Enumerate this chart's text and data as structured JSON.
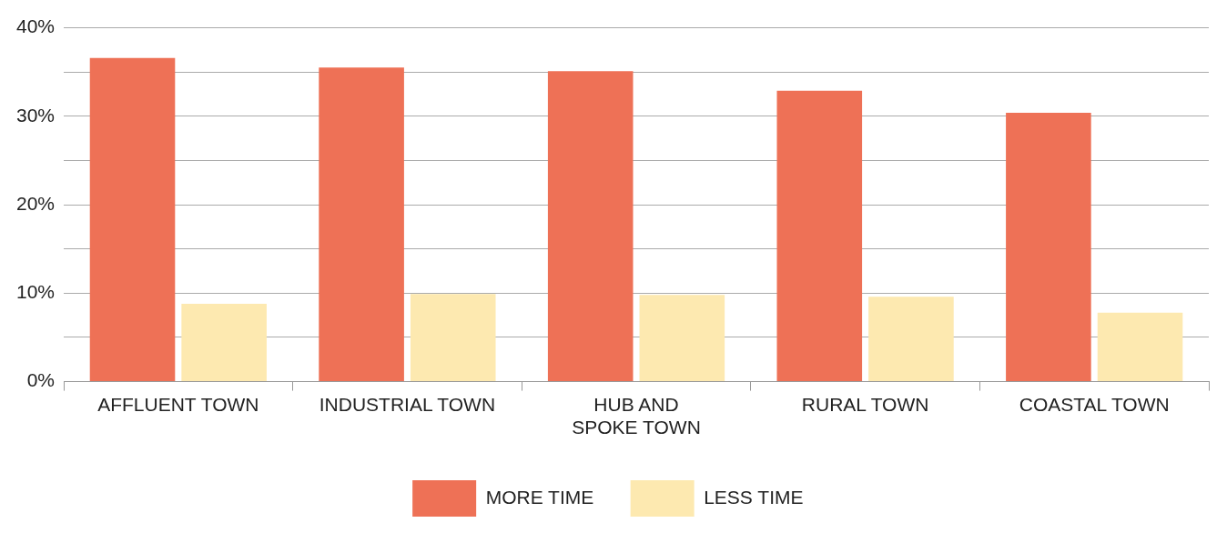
{
  "chart_data": {
    "type": "bar",
    "categories": [
      "AFFLUENT TOWN",
      "INDUSTRIAL TOWN",
      "HUB AND SPOKE TOWN",
      "RURAL TOWN",
      "COASTAL TOWN"
    ],
    "series": [
      {
        "name": "MORE TIME",
        "color": "#ee7156",
        "values": [
          36.6,
          35.5,
          35.1,
          32.9,
          30.4
        ]
      },
      {
        "name": "LESS TIME",
        "color": "#fde9b0",
        "values": [
          8.8,
          9.9,
          9.8,
          9.6,
          7.8
        ]
      }
    ],
    "ylim": [
      0,
      40
    ],
    "yticks": [
      {
        "value": 0,
        "label": "0%"
      },
      {
        "value": 5,
        "label": null
      },
      {
        "value": 10,
        "label": "10%"
      },
      {
        "value": 15,
        "label": null
      },
      {
        "value": 20,
        "label": "20%"
      },
      {
        "value": 25,
        "label": null
      },
      {
        "value": 30,
        "label": "30%"
      },
      {
        "value": 35,
        "label": null
      },
      {
        "value": 40,
        "label": "40%"
      }
    ],
    "grid": "y",
    "legend": "bottom"
  }
}
